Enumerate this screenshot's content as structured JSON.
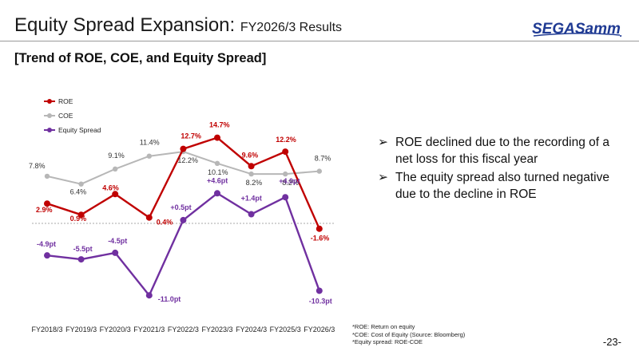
{
  "title": "Equity Spread Expansion: ",
  "title_sub": "FY2026/3 Results",
  "logo_text": "SEGASammy",
  "heading": "[Trend of ROE, COE, and Equity Spread]",
  "bullets": [
    {
      "icon": "arrow-bullet-icon",
      "text": "ROE declined due to the recording of a net loss for this fiscal year"
    },
    {
      "icon": "arrow-bullet-icon",
      "text": "The equity spread also turned negative due to the decline in ROE"
    }
  ],
  "notes": [
    "*ROE: Return on equity",
    "*COE: Cost of Equity (Source: Bloomberg)",
    "*Equity spread: ROE-COE"
  ],
  "page_number": "-23-",
  "colors": {
    "roe": "#c00000",
    "coe": "#b7b7b7",
    "spread": "#7030a0"
  },
  "chart_data": {
    "type": "line",
    "categories": [
      "FY2018/3",
      "FY2019/3",
      "FY2020/3",
      "FY2021/3",
      "FY2022/3",
      "FY2023/3",
      "FY2024/3",
      "FY2025/3",
      "FY2026/3"
    ],
    "series": [
      {
        "name": "ROE",
        "values": [
          2.9,
          0.9,
          4.6,
          0.4,
          12.7,
          14.7,
          9.6,
          12.2,
          -1.6
        ],
        "labels": [
          "2.9%",
          "0.9%",
          "4.6%",
          "0.4%",
          "12.7%",
          "14.7%",
          "9.6%",
          "12.2%",
          "-1.6%"
        ]
      },
      {
        "name": "COE",
        "values": [
          7.8,
          6.4,
          9.1,
          11.4,
          12.2,
          10.1,
          8.2,
          8.2,
          8.7
        ],
        "labels": [
          "7.8%",
          "6.4%",
          "9.1%",
          "11.4%",
          "12.2%",
          "10.1%",
          "8.2%",
          "8.2%",
          "8.7%"
        ]
      },
      {
        "name": "Equity Spread",
        "values": [
          -4.9,
          -5.5,
          -4.5,
          -11.0,
          0.5,
          4.6,
          1.4,
          4.0,
          -10.3
        ],
        "labels": [
          "-4.9pt",
          "-5.5pt",
          "-4.5pt",
          "-11.0pt",
          "+0.5pt",
          "+4.6pt",
          "+1.4pt",
          "+4.0pt",
          "-10.3pt"
        ]
      }
    ],
    "zero_line": true,
    "legend_position": "top-left"
  }
}
